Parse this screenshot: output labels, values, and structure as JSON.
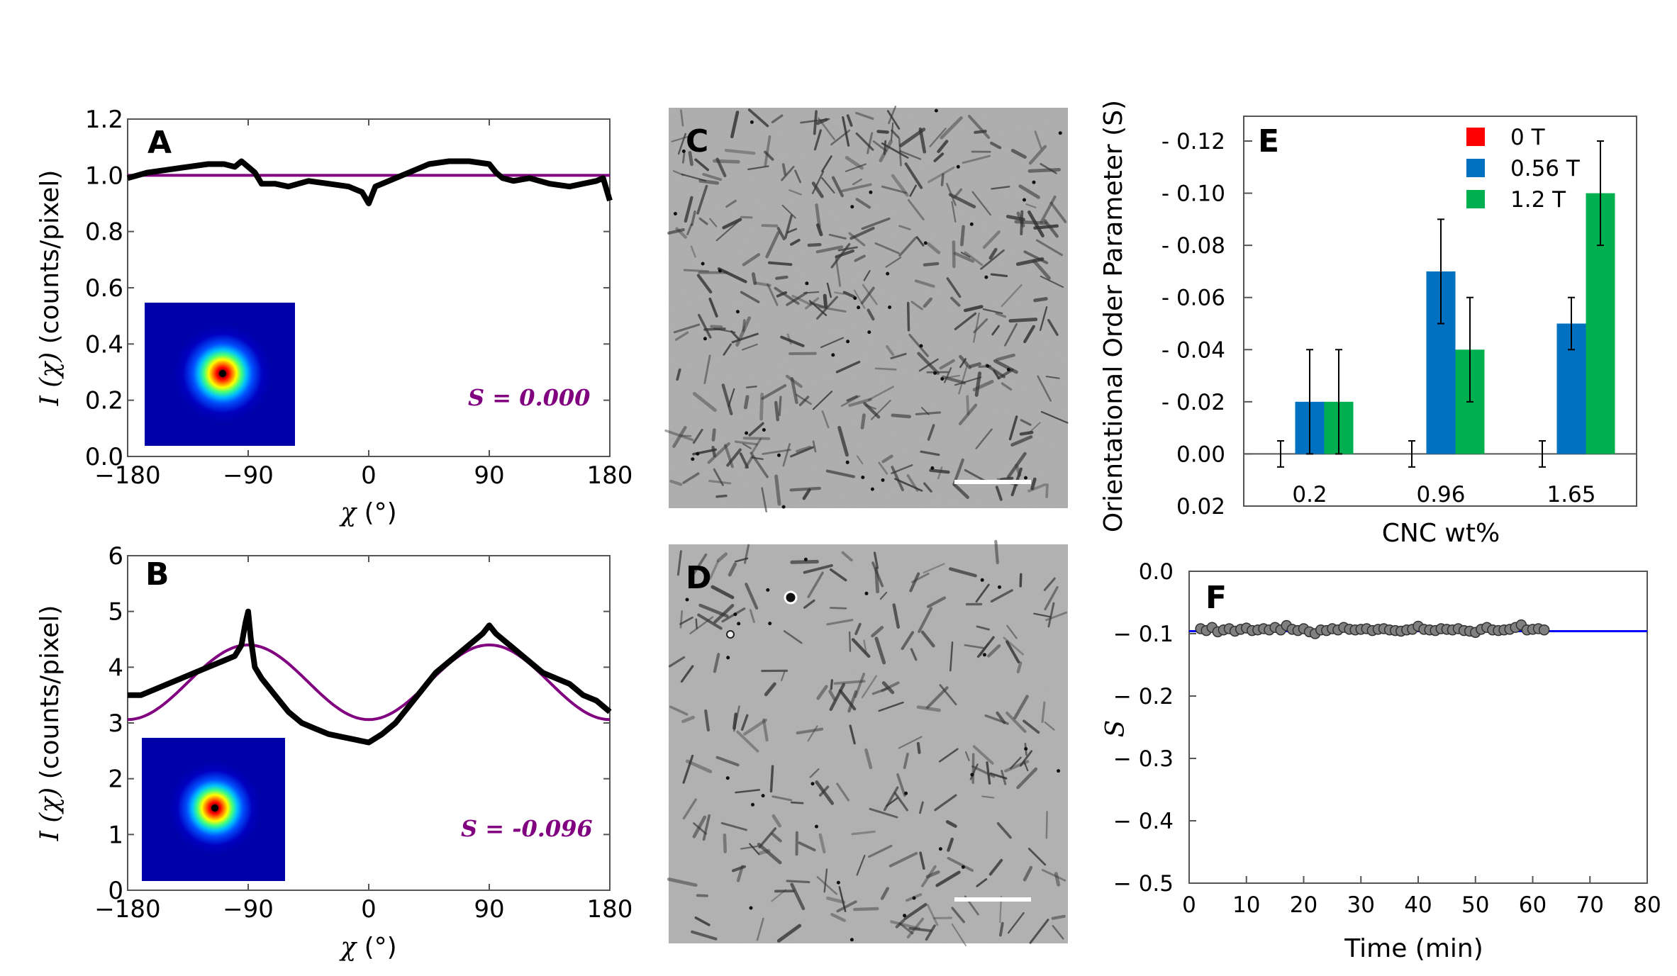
{
  "colors": {
    "fit": "#800080",
    "data": "#000000",
    "red": "#ff0000",
    "blue": "#0070c0",
    "green": "#00b050",
    "fline": "#0000ff",
    "point": "#808080"
  },
  "chart_data": [
    {
      "id": "A",
      "type": "line",
      "panel_label": "A",
      "xlabel_sym": "χ",
      "xlabel_unit": "(°)",
      "ylabel_sym": "I (χ)",
      "ylabel_unit": "(counts/pixel)",
      "xlim": [
        -180,
        180
      ],
      "ylim": [
        0,
        1.2
      ],
      "xticks": [
        -180,
        -90,
        0,
        90,
        180
      ],
      "xticklabels": [
        "−180",
        "−90",
        "0",
        "90",
        "180"
      ],
      "yticks": [
        0,
        0.2,
        0.4,
        0.6,
        0.8,
        1.0,
        1.2
      ],
      "yticklabels": [
        "0.0",
        "0.2",
        "0.4",
        "0.6",
        "0.8",
        "1.0",
        "1.2"
      ],
      "annotation": "S = 0.000",
      "series": [
        {
          "kind": "data",
          "x": [
            -180,
            -165,
            -150,
            -135,
            -120,
            -108,
            -100,
            -95,
            -90,
            -85,
            -80,
            -70,
            -60,
            -45,
            -30,
            -15,
            -5,
            0,
            5,
            15,
            30,
            45,
            60,
            75,
            90,
            95,
            100,
            108,
            120,
            135,
            150,
            160,
            170,
            175,
            180
          ],
          "y": [
            0.99,
            1.01,
            1.02,
            1.03,
            1.04,
            1.04,
            1.03,
            1.05,
            1.03,
            1.01,
            0.97,
            0.97,
            0.96,
            0.98,
            0.97,
            0.96,
            0.94,
            0.9,
            0.96,
            0.98,
            1.01,
            1.04,
            1.05,
            1.05,
            1.04,
            1.01,
            0.99,
            0.98,
            0.99,
            0.97,
            0.96,
            0.97,
            0.98,
            0.99,
            0.91
          ]
        },
        {
          "kind": "fit",
          "x": [
            -180,
            180
          ],
          "y": [
            1.0,
            1.0
          ]
        }
      ]
    },
    {
      "id": "B",
      "type": "line",
      "panel_label": "B",
      "xlabel_sym": "χ",
      "xlabel_unit": "(°)",
      "ylabel_sym": "I (χ)",
      "ylabel_unit": "(counts/pixel)",
      "xlim": [
        -180,
        180
      ],
      "ylim": [
        0,
        6
      ],
      "xticks": [
        -180,
        -90,
        0,
        90,
        180
      ],
      "xticklabels": [
        "−180",
        "−90",
        "0",
        "90",
        "180"
      ],
      "yticks": [
        0,
        1,
        2,
        3,
        4,
        5,
        6
      ],
      "yticklabels": [
        "0",
        "1",
        "2",
        "3",
        "4",
        "5",
        "6"
      ],
      "annotation": "S = -0.096",
      "series": [
        {
          "kind": "data",
          "x": [
            -180,
            -170,
            -160,
            -150,
            -140,
            -130,
            -120,
            -110,
            -100,
            -95,
            -92,
            -90,
            -88,
            -85,
            -80,
            -70,
            -60,
            -50,
            -40,
            -30,
            -20,
            -10,
            0,
            10,
            20,
            30,
            40,
            50,
            60,
            70,
            80,
            85,
            90,
            95,
            100,
            110,
            120,
            130,
            140,
            150,
            160,
            170,
            180
          ],
          "y": [
            3.5,
            3.5,
            3.6,
            3.7,
            3.8,
            3.9,
            4.0,
            4.1,
            4.2,
            4.4,
            4.8,
            5.0,
            4.5,
            4.0,
            3.8,
            3.5,
            3.2,
            3.0,
            2.9,
            2.8,
            2.75,
            2.7,
            2.65,
            2.8,
            3.0,
            3.3,
            3.6,
            3.9,
            4.1,
            4.3,
            4.5,
            4.6,
            4.75,
            4.6,
            4.5,
            4.3,
            4.1,
            3.9,
            3.8,
            3.7,
            3.5,
            3.4,
            3.2
          ]
        },
        {
          "kind": "fit",
          "formula": "3.73 - 0.67*cos(2x)"
        }
      ]
    },
    {
      "id": "E",
      "type": "bar",
      "panel_label": "E",
      "ylabel": "Orientational Order Parameter (S)",
      "xlabel": "CNC wt%",
      "categories": [
        "0.2",
        "0.96",
        "1.65"
      ],
      "ylim": [
        0.02,
        -0.13
      ],
      "yticks": [
        -0.12,
        -0.1,
        -0.08,
        -0.06,
        -0.04,
        -0.02,
        0.0,
        0.02
      ],
      "yticklabels": [
        "- 0.12",
        "- 0.10",
        "- 0.08",
        "- 0.06",
        "- 0.04",
        "- 0.02",
        "0.00",
        "0.02"
      ],
      "series": [
        {
          "name": "0 T",
          "color": "red",
          "values": [
            0.0,
            0.0,
            0.0
          ],
          "errors": [
            0.005,
            0.005,
            0.005
          ]
        },
        {
          "name": "0.56 T",
          "color": "blue",
          "values": [
            -0.02,
            -0.07,
            -0.05
          ],
          "errors": [
            0.02,
            0.02,
            0.01
          ]
        },
        {
          "name": "1.2 T",
          "color": "green",
          "values": [
            -0.02,
            -0.04,
            -0.1
          ],
          "errors": [
            0.02,
            0.02,
            0.02
          ]
        }
      ],
      "legend": "top-right"
    },
    {
      "id": "F",
      "type": "scatter",
      "panel_label": "F",
      "ylabel": "S",
      "xlabel": "Time (min)",
      "xlim": [
        0,
        80
      ],
      "ylim": [
        -0.5,
        0.0
      ],
      "xticks": [
        0,
        10,
        20,
        30,
        40,
        50,
        60,
        70,
        80
      ],
      "yticks": [
        0.0,
        -0.1,
        -0.2,
        -0.3,
        -0.4,
        -0.5
      ],
      "yticklabels": [
        "0.0",
        "− 0.1",
        "− 0.2",
        "− 0.3",
        "− 0.4",
        "− 0.5"
      ],
      "series": [
        {
          "kind": "points",
          "x": [
            2,
            3,
            4,
            5,
            6,
            7,
            8,
            9,
            10,
            11,
            12,
            13,
            14,
            15,
            16,
            17,
            18,
            19,
            20,
            21,
            22,
            23,
            24,
            25,
            26,
            27,
            28,
            29,
            30,
            31,
            32,
            33,
            34,
            35,
            36,
            37,
            38,
            39,
            40,
            41,
            42,
            43,
            44,
            45,
            46,
            47,
            48,
            49,
            50,
            51,
            52,
            53,
            54,
            55,
            56,
            57,
            58,
            59,
            60,
            61,
            62
          ],
          "y": [
            -0.092,
            -0.095,
            -0.09,
            -0.097,
            -0.094,
            -0.092,
            -0.096,
            -0.093,
            -0.091,
            -0.095,
            -0.094,
            -0.092,
            -0.094,
            -0.09,
            -0.094,
            -0.087,
            -0.093,
            -0.095,
            -0.092,
            -0.097,
            -0.1,
            -0.094,
            -0.095,
            -0.092,
            -0.094,
            -0.09,
            -0.093,
            -0.094,
            -0.093,
            -0.092,
            -0.095,
            -0.093,
            -0.092,
            -0.094,
            -0.095,
            -0.096,
            -0.094,
            -0.093,
            -0.088,
            -0.093,
            -0.094,
            -0.095,
            -0.092,
            -0.093,
            -0.094,
            -0.092,
            -0.095,
            -0.096,
            -0.098,
            -0.093,
            -0.09,
            -0.094,
            -0.095,
            -0.094,
            -0.093,
            -0.09,
            -0.086,
            -0.094,
            -0.093,
            -0.092,
            -0.094
          ]
        },
        {
          "kind": "line",
          "y": -0.096,
          "xlim": [
            0,
            80
          ]
        }
      ]
    }
  ],
  "images": {
    "C": {
      "panel_label": "C",
      "content": "TEM micrograph of CNC rods",
      "scale_bar": true
    },
    "D": {
      "panel_label": "D",
      "content": "TEM micrograph of CNC rods",
      "scale_bar": true
    }
  }
}
